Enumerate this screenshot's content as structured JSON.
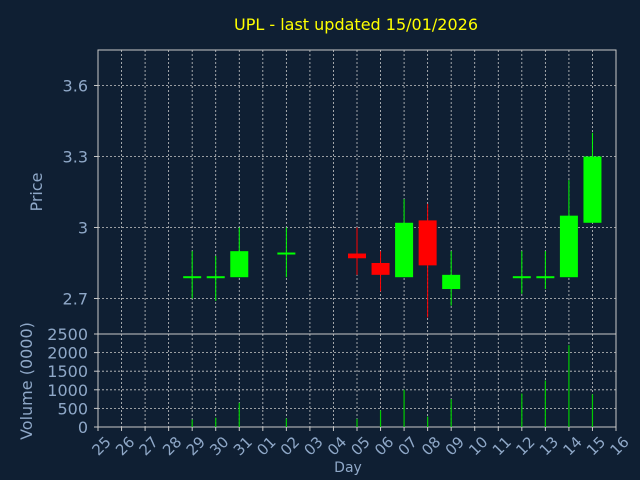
{
  "title": "UPL - last updated 15/01/2026",
  "colors": {
    "background": "#0f1f33",
    "title": "#ffff00",
    "axis_text": "#8fa8c8",
    "frame": "#c8c8c8",
    "grid": "#c8c8c8",
    "up": "#00ff00",
    "down": "#ff0000",
    "volume": "#00cc00"
  },
  "chart_data": [
    {
      "type": "candlestick",
      "title": "UPL - last updated 15/01/2026",
      "xlabel": "",
      "ylabel": "Price",
      "categories": [
        "25",
        "26",
        "27",
        "28",
        "29",
        "30",
        "31",
        "01",
        "02",
        "03",
        "04",
        "05",
        "06",
        "07",
        "08",
        "09",
        "10",
        "11",
        "12",
        "13",
        "14",
        "15",
        "16"
      ],
      "ylim": [
        2.55,
        3.75
      ],
      "yticks": [
        2.7,
        3.0,
        3.3,
        3.6
      ],
      "ytick_labels": [
        "2.7",
        "3",
        "3.3",
        "3.6"
      ],
      "grid": true,
      "candles": [
        {
          "x": "29",
          "open": 2.79,
          "high": 2.9,
          "low": 2.7,
          "close": 2.79
        },
        {
          "x": "30",
          "open": 2.79,
          "high": 2.88,
          "low": 2.69,
          "close": 2.79
        },
        {
          "x": "31",
          "open": 2.79,
          "high": 3.0,
          "low": 2.79,
          "close": 2.9
        },
        {
          "x": "02",
          "open": 2.89,
          "high": 3.0,
          "low": 2.79,
          "close": 2.89
        },
        {
          "x": "05",
          "open": 2.89,
          "high": 3.0,
          "low": 2.8,
          "close": 2.87
        },
        {
          "x": "06",
          "open": 2.85,
          "high": 2.9,
          "low": 2.73,
          "close": 2.8
        },
        {
          "x": "07",
          "open": 2.79,
          "high": 3.12,
          "low": 2.79,
          "close": 3.02
        },
        {
          "x": "08",
          "open": 3.03,
          "high": 3.1,
          "low": 2.62,
          "close": 2.84
        },
        {
          "x": "09",
          "open": 2.74,
          "high": 2.9,
          "low": 2.67,
          "close": 2.8
        },
        {
          "x": "12",
          "open": 2.79,
          "high": 2.9,
          "low": 2.72,
          "close": 2.79
        },
        {
          "x": "13",
          "open": 2.79,
          "high": 2.9,
          "low": 2.74,
          "close": 2.79
        },
        {
          "x": "14",
          "open": 2.79,
          "high": 3.2,
          "low": 2.79,
          "close": 3.05
        },
        {
          "x": "15",
          "open": 3.02,
          "high": 3.4,
          "low": 3.02,
          "close": 3.3
        }
      ]
    },
    {
      "type": "bar",
      "xlabel": "Day",
      "ylabel": "Volume (0000)",
      "categories": [
        "25",
        "26",
        "27",
        "28",
        "29",
        "30",
        "31",
        "01",
        "02",
        "03",
        "04",
        "05",
        "06",
        "07",
        "08",
        "09",
        "10",
        "11",
        "12",
        "13",
        "14",
        "15",
        "16"
      ],
      "ylim": [
        0,
        2500
      ],
      "yticks": [
        0,
        500,
        1000,
        1500,
        2000,
        2500
      ],
      "ytick_labels": [
        "0",
        "500",
        "1000",
        "1500",
        "2000",
        "2500"
      ],
      "grid": true,
      "bars": [
        {
          "x": "29",
          "value": 200
        },
        {
          "x": "30",
          "value": 250
        },
        {
          "x": "31",
          "value": 650
        },
        {
          "x": "02",
          "value": 230
        },
        {
          "x": "05",
          "value": 220
        },
        {
          "x": "06",
          "value": 450
        },
        {
          "x": "07",
          "value": 1000
        },
        {
          "x": "08",
          "value": 280
        },
        {
          "x": "09",
          "value": 750
        },
        {
          "x": "12",
          "value": 900
        },
        {
          "x": "13",
          "value": 1250
        },
        {
          "x": "14",
          "value": 2200
        },
        {
          "x": "15",
          "value": 880
        }
      ]
    }
  ]
}
